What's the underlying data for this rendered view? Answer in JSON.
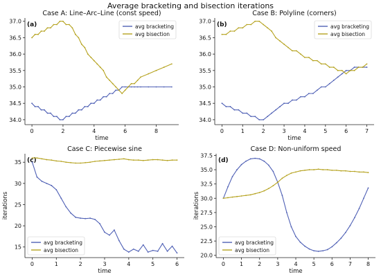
{
  "figure": {
    "suptitle": "Average bracketing and bisection iterations",
    "colors": {
      "bracketing": "#4f60b5",
      "bisection": "#b5a21e"
    }
  },
  "chart_data": [
    {
      "type": "line",
      "panel_label": "(a)",
      "title": "Case A: Line–Arc–Line (const speed)",
      "xlabel": "time",
      "ylabel": "",
      "xlim": [
        -0.45,
        9.45
      ],
      "ylim": [
        33.85,
        37.1
      ],
      "xticks": [
        0,
        2,
        4,
        6,
        8
      ],
      "yticks": [
        34.0,
        34.5,
        35.0,
        35.5,
        36.0,
        36.5,
        37.0
      ],
      "ytick_labels": [
        "34.0",
        "34.5",
        "35.0",
        "35.5",
        "36.0",
        "36.5",
        "37.0"
      ],
      "legend_position": "top-right",
      "grid": false,
      "series": [
        {
          "name": "avg bracketing",
          "color": "#4f60b5",
          "x": [
            0,
            0.2,
            0.4,
            0.6,
            0.8,
            1.0,
            1.2,
            1.4,
            1.6,
            1.8,
            2.0,
            2.2,
            2.4,
            2.6,
            2.8,
            3.0,
            3.2,
            3.4,
            3.6,
            3.8,
            4.0,
            4.2,
            4.4,
            4.6,
            4.8,
            5.0,
            5.2,
            5.4,
            5.6,
            5.8,
            6.0,
            6.2,
            6.4,
            6.6,
            6.8,
            7.0,
            7.5,
            8.0,
            8.5,
            9.0
          ],
          "y": [
            34.5,
            34.4,
            34.4,
            34.3,
            34.3,
            34.2,
            34.2,
            34.1,
            34.1,
            34.0,
            34.0,
            34.1,
            34.1,
            34.2,
            34.2,
            34.3,
            34.3,
            34.4,
            34.4,
            34.5,
            34.5,
            34.6,
            34.6,
            34.7,
            34.7,
            34.8,
            34.8,
            34.9,
            34.9,
            35.0,
            35.0,
            35.0,
            35.0,
            35.0,
            35.0,
            35.0,
            35.0,
            35.0,
            35.0,
            35.0
          ]
        },
        {
          "name": "avg bisection",
          "color": "#b5a21e",
          "x": [
            0,
            0.2,
            0.4,
            0.6,
            0.8,
            1.0,
            1.2,
            1.4,
            1.6,
            1.8,
            2.0,
            2.2,
            2.4,
            2.6,
            2.8,
            3.0,
            3.2,
            3.4,
            3.6,
            3.8,
            4.0,
            4.2,
            4.4,
            4.6,
            4.8,
            5.0,
            5.2,
            5.4,
            5.6,
            5.8,
            6.0,
            6.2,
            6.4,
            6.6,
            6.8,
            7.0,
            7.5,
            8.0,
            8.5,
            9.0
          ],
          "y": [
            36.5,
            36.6,
            36.6,
            36.7,
            36.7,
            36.8,
            36.8,
            36.9,
            36.9,
            37.0,
            37.0,
            36.9,
            36.9,
            36.8,
            36.6,
            36.5,
            36.3,
            36.2,
            36.0,
            35.9,
            35.8,
            35.7,
            35.6,
            35.5,
            35.3,
            35.2,
            35.1,
            35.0,
            34.9,
            34.8,
            34.9,
            35.0,
            35.1,
            35.1,
            35.2,
            35.3,
            35.4,
            35.5,
            35.6,
            35.7
          ]
        }
      ]
    },
    {
      "type": "line",
      "panel_label": "(b)",
      "title": "Case B: Polyline (corners)",
      "xlabel": "time",
      "ylabel": "",
      "xlim": [
        -0.35,
        7.35
      ],
      "ylim": [
        33.85,
        37.1
      ],
      "xticks": [
        0,
        1,
        2,
        3,
        4,
        5,
        6,
        7
      ],
      "yticks": [
        34.0,
        34.5,
        35.0,
        35.5,
        36.0,
        36.5,
        37.0
      ],
      "ytick_labels": [
        "34.0",
        "34.5",
        "35.0",
        "35.5",
        "36.0",
        "36.5",
        "37.0"
      ],
      "legend_position": "top-right",
      "grid": false,
      "series": [
        {
          "name": "avg bracketing",
          "color": "#4f60b5",
          "x": [
            0,
            0.2,
            0.4,
            0.6,
            0.8,
            1.0,
            1.2,
            1.4,
            1.6,
            1.8,
            2.0,
            2.2,
            2.4,
            2.6,
            2.8,
            3.0,
            3.2,
            3.4,
            3.6,
            3.8,
            4.0,
            4.2,
            4.4,
            4.6,
            4.8,
            5.0,
            5.2,
            5.4,
            5.6,
            5.8,
            6.0,
            6.2,
            6.4,
            6.6,
            6.8,
            7.0
          ],
          "y": [
            34.5,
            34.4,
            34.4,
            34.3,
            34.3,
            34.2,
            34.2,
            34.1,
            34.1,
            34.0,
            34.0,
            34.1,
            34.2,
            34.3,
            34.4,
            34.5,
            34.5,
            34.6,
            34.6,
            34.7,
            34.7,
            34.8,
            34.8,
            34.9,
            35.0,
            35.0,
            35.1,
            35.2,
            35.3,
            35.4,
            35.5,
            35.5,
            35.6,
            35.6,
            35.6,
            35.6
          ]
        },
        {
          "name": "avg bisection",
          "color": "#b5a21e",
          "x": [
            0,
            0.2,
            0.4,
            0.6,
            0.8,
            1.0,
            1.2,
            1.4,
            1.6,
            1.8,
            2.0,
            2.2,
            2.4,
            2.6,
            2.8,
            3.0,
            3.2,
            3.4,
            3.6,
            3.8,
            4.0,
            4.2,
            4.4,
            4.6,
            4.8,
            5.0,
            5.2,
            5.4,
            5.6,
            5.8,
            6.0,
            6.2,
            6.4,
            6.6,
            6.8,
            7.0
          ],
          "y": [
            36.6,
            36.6,
            36.7,
            36.7,
            36.8,
            36.8,
            36.9,
            36.9,
            37.0,
            37.0,
            36.9,
            36.8,
            36.7,
            36.5,
            36.4,
            36.3,
            36.2,
            36.1,
            36.1,
            36.0,
            35.9,
            35.9,
            35.8,
            35.8,
            35.7,
            35.7,
            35.6,
            35.6,
            35.5,
            35.5,
            35.4,
            35.5,
            35.5,
            35.6,
            35.6,
            35.7
          ]
        }
      ]
    },
    {
      "type": "line",
      "panel_label": "(c)",
      "title": "Case C: Piecewise sine",
      "xlabel": "time",
      "ylabel": "iterations",
      "xlim": [
        -0.3,
        6.3
      ],
      "ylim": [
        12.5,
        37.0
      ],
      "xticks": [
        0,
        1,
        2,
        3,
        4,
        5,
        6
      ],
      "yticks": [
        15,
        20,
        25,
        30,
        35
      ],
      "ytick_labels": [
        "15",
        "20",
        "25",
        "30",
        "35"
      ],
      "legend_position": "bottom-left",
      "grid": false,
      "series": [
        {
          "name": "avg bracketing",
          "color": "#4f60b5",
          "x": [
            0,
            0.2,
            0.4,
            0.6,
            0.8,
            1.0,
            1.2,
            1.4,
            1.6,
            1.8,
            2.0,
            2.2,
            2.4,
            2.6,
            2.8,
            3.0,
            3.2,
            3.4,
            3.6,
            3.8,
            4.0,
            4.2,
            4.4,
            4.6,
            4.8,
            5.0,
            5.2,
            5.4,
            5.6,
            5.8,
            6.0
          ],
          "y": [
            35.0,
            31.5,
            30.5,
            30.0,
            29.5,
            28.5,
            26.5,
            24.5,
            23.0,
            22.0,
            21.8,
            21.7,
            21.8,
            21.5,
            20.5,
            18.5,
            17.8,
            19.0,
            16.5,
            14.5,
            13.8,
            14.5,
            14.0,
            15.5,
            13.8,
            14.2,
            14.0,
            15.8,
            14.0,
            15.2,
            13.6
          ]
        },
        {
          "name": "avg bisection",
          "color": "#b5a21e",
          "x": [
            0,
            0.2,
            0.4,
            0.6,
            0.8,
            1.0,
            1.2,
            1.4,
            1.6,
            1.8,
            2.0,
            2.2,
            2.4,
            2.6,
            2.8,
            3.0,
            3.2,
            3.4,
            3.6,
            3.8,
            4.0,
            4.2,
            4.4,
            4.6,
            4.8,
            5.0,
            5.2,
            5.4,
            5.6,
            5.8,
            6.0
          ],
          "y": [
            36.0,
            36.0,
            35.8,
            35.6,
            35.5,
            35.3,
            35.2,
            35.0,
            34.9,
            34.8,
            34.8,
            34.9,
            35.0,
            35.2,
            35.3,
            35.4,
            35.5,
            35.6,
            35.7,
            35.8,
            35.6,
            35.5,
            35.5,
            35.4,
            35.5,
            35.6,
            35.6,
            35.5,
            35.4,
            35.5,
            35.5
          ]
        }
      ]
    },
    {
      "type": "line",
      "panel_label": "(d)",
      "title": "Case D: Non-uniform speed",
      "xlabel": "time",
      "ylabel": "iterations",
      "xlim": [
        -0.4,
        8.4
      ],
      "ylim": [
        19.6,
        37.8
      ],
      "xticks": [
        0,
        1,
        2,
        3,
        4,
        5,
        6,
        7,
        8
      ],
      "yticks": [
        20.0,
        22.5,
        25.0,
        27.5,
        30.0,
        32.5,
        35.0,
        37.5
      ],
      "ytick_labels": [
        "20.0",
        "22.5",
        "25.0",
        "27.5",
        "30.0",
        "32.5",
        "35.0",
        "37.5"
      ],
      "legend_position": "bottom-left",
      "grid": false,
      "series": [
        {
          "name": "avg bracketing",
          "color": "#4f60b5",
          "x": [
            0,
            0.25,
            0.5,
            0.75,
            1.0,
            1.25,
            1.5,
            1.75,
            2.0,
            2.25,
            2.5,
            2.75,
            3.0,
            3.25,
            3.5,
            3.75,
            4.0,
            4.25,
            4.5,
            4.75,
            5.0,
            5.25,
            5.5,
            5.75,
            6.0,
            6.25,
            6.5,
            6.75,
            7.0,
            7.25,
            7.5,
            7.75,
            8.0
          ],
          "y": [
            30.0,
            32.0,
            33.8,
            35.0,
            35.9,
            36.5,
            36.9,
            37.0,
            36.9,
            36.5,
            35.8,
            34.7,
            32.8,
            30.5,
            27.5,
            25.0,
            23.3,
            22.3,
            21.6,
            21.1,
            20.8,
            20.7,
            20.8,
            21.0,
            21.5,
            22.2,
            23.0,
            24.0,
            25.2,
            26.6,
            28.2,
            30.0,
            31.8
          ]
        },
        {
          "name": "avg bisection",
          "color": "#b5a21e",
          "x": [
            0,
            0.25,
            0.5,
            0.75,
            1.0,
            1.25,
            1.5,
            1.75,
            2.0,
            2.25,
            2.5,
            2.75,
            3.0,
            3.25,
            3.5,
            3.75,
            4.0,
            4.25,
            4.5,
            4.75,
            5.0,
            5.25,
            5.5,
            5.75,
            6.0,
            6.25,
            6.5,
            6.75,
            7.0,
            7.25,
            7.5,
            7.75,
            8.0
          ],
          "y": [
            30.0,
            30.1,
            30.2,
            30.3,
            30.4,
            30.5,
            30.6,
            30.8,
            31.0,
            31.3,
            31.7,
            32.2,
            32.8,
            33.5,
            34.0,
            34.4,
            34.6,
            34.8,
            34.9,
            35.0,
            35.0,
            35.1,
            35.0,
            35.0,
            34.9,
            34.9,
            34.8,
            34.8,
            34.7,
            34.7,
            34.6,
            34.6,
            34.5
          ]
        }
      ]
    }
  ]
}
